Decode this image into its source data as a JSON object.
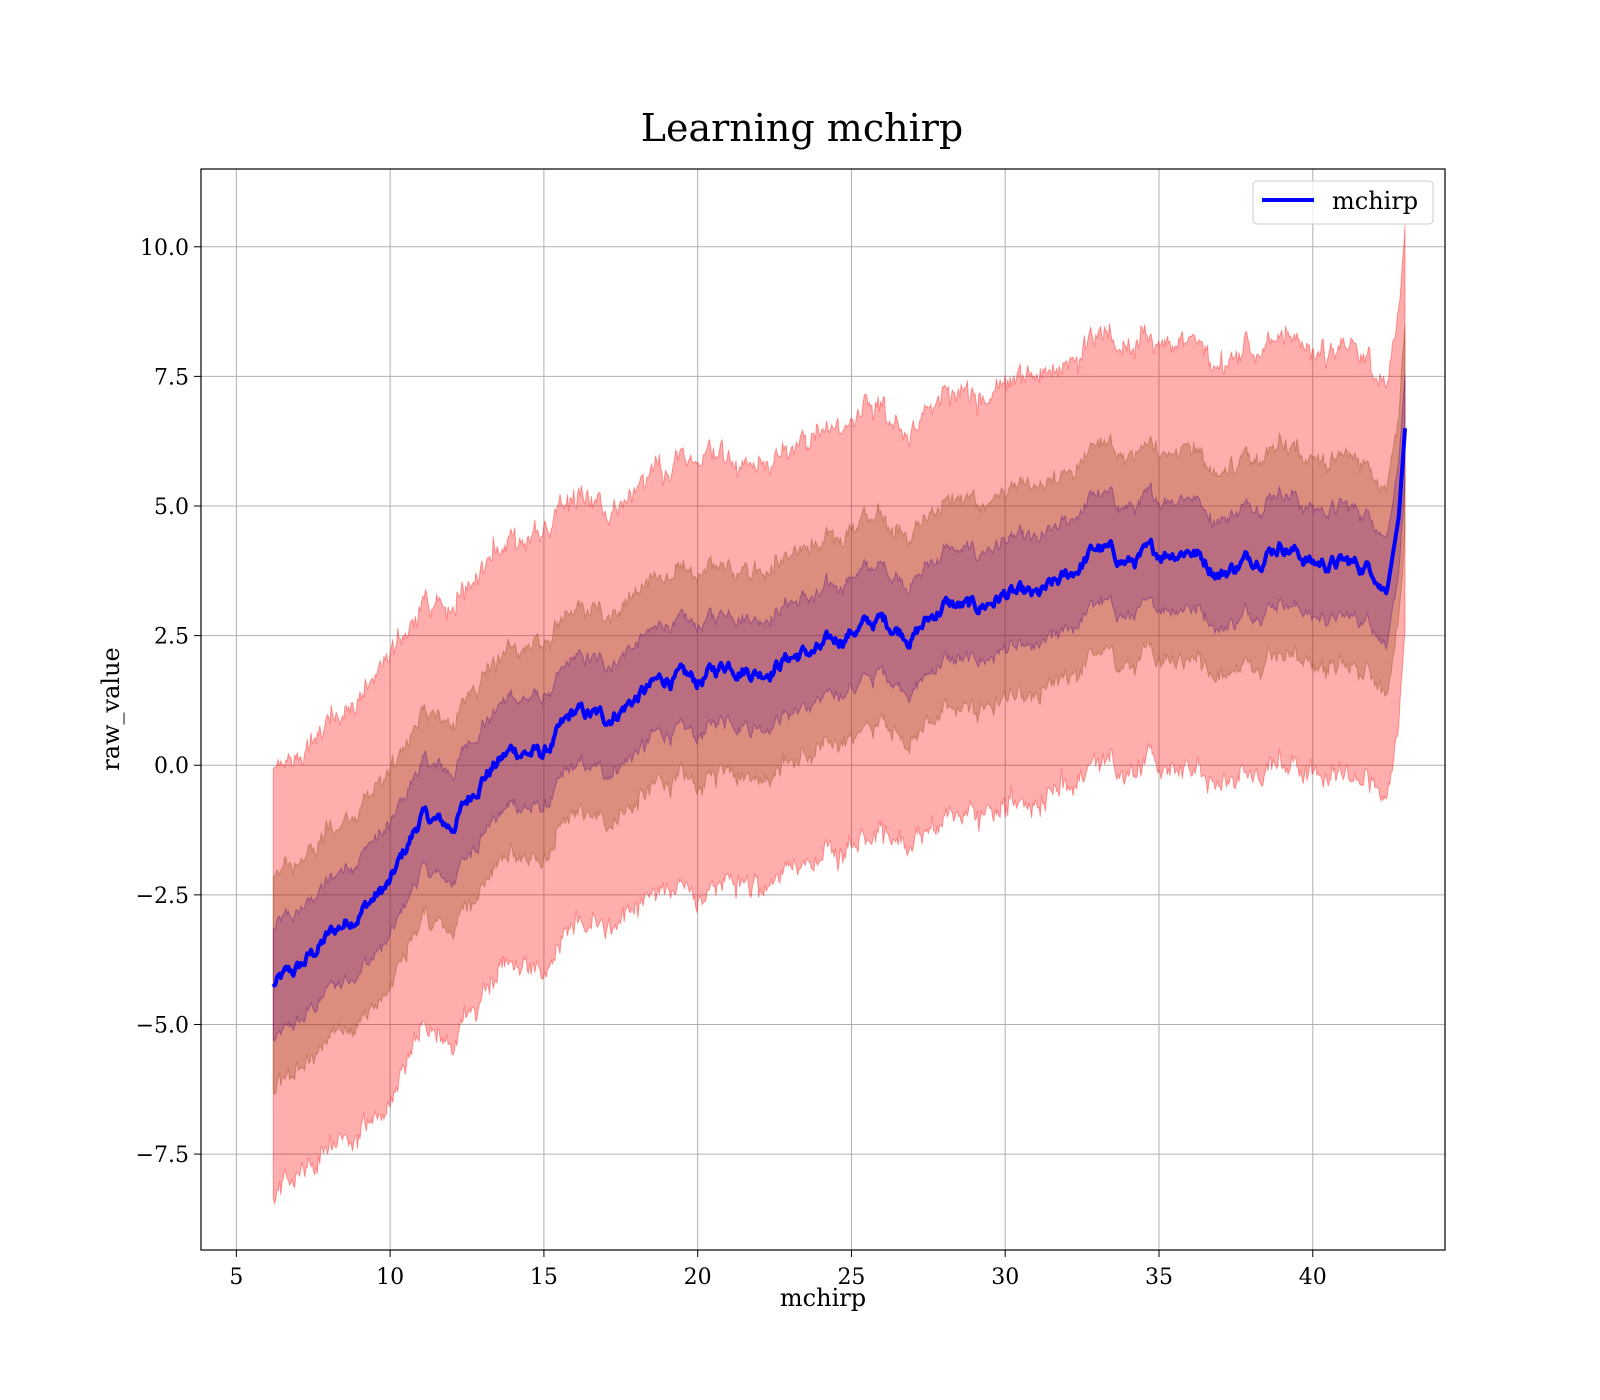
{
  "chart_data": {
    "type": "line",
    "title": "Learning mchirp",
    "xlabel": "mchirp",
    "ylabel": "raw_value",
    "xlim": [
      3.85,
      44.3
    ],
    "ylim": [
      -9.35,
      11.5
    ],
    "xticks": [
      5,
      10,
      15,
      20,
      25,
      30,
      35,
      40
    ],
    "xtick_labels": [
      "5",
      "10",
      "15",
      "20",
      "25",
      "30",
      "35",
      "40"
    ],
    "yticks": [
      -7.5,
      -5.0,
      -2.5,
      0.0,
      2.5,
      5.0,
      7.5,
      10.0
    ],
    "ytick_labels": [
      "−7.5",
      "−5.0",
      "−2.5",
      "0.0",
      "2.5",
      "5.0",
      "7.5",
      "10.0"
    ],
    "grid": true,
    "legend": {
      "position": "top-right",
      "entries": [
        "mchirp"
      ]
    },
    "colors": {
      "line": "#0000ff",
      "band_outer": "#ff0000",
      "band_middle": "#8b4513",
      "band_inner": "#4b0082"
    },
    "x": [
      6.2,
      7,
      8,
      9,
      10,
      11,
      12,
      13,
      14,
      15,
      16,
      17,
      18,
      19,
      20,
      21,
      22,
      23,
      24,
      25,
      26,
      27,
      28,
      29,
      30,
      31,
      32,
      33,
      34,
      35,
      36,
      37,
      38,
      39,
      40,
      41,
      42,
      42.4,
      42.8,
      43.0
    ],
    "series": [
      {
        "name": "mchirp",
        "values": [
          -4.25,
          -3.95,
          -3.3,
          -2.8,
          -2.3,
          -1.0,
          -1.2,
          -0.2,
          0.3,
          0.2,
          1.0,
          0.9,
          1.3,
          1.7,
          1.6,
          2.0,
          1.8,
          2.1,
          2.2,
          2.6,
          2.8,
          2.5,
          3.1,
          3.0,
          3.3,
          3.2,
          3.6,
          4.2,
          3.9,
          4.1,
          4.2,
          3.7,
          4.0,
          4.3,
          3.9,
          3.9,
          3.8,
          3.3,
          4.8,
          6.5
        ]
      }
    ],
    "bands": [
      {
        "sigma": 3,
        "half_width": [
          4.1,
          4.0,
          4.1,
          4.2,
          4.3,
          4.1,
          4.2,
          4.1,
          4.1,
          4.2,
          4.2,
          4.0,
          4.0,
          4.1,
          4.2,
          4.1,
          4.1,
          4.0,
          4.1,
          4.1,
          4.1,
          4.0,
          4.1,
          4.0,
          4.1,
          4.1,
          4.1,
          4.1,
          4.1,
          4.1,
          4.1,
          4.1,
          4.1,
          4.1,
          4.1,
          4.1,
          4.0,
          4.1,
          4.0,
          4.0
        ]
      },
      {
        "sigma": 2,
        "half_width": [
          2.05,
          2.0,
          2.0,
          2.05,
          2.1,
          2.0,
          2.0,
          2.0,
          2.0,
          2.05,
          2.0,
          2.0,
          2.0,
          2.0,
          2.0,
          2.0,
          2.0,
          2.0,
          2.0,
          2.0,
          2.0,
          2.0,
          2.0,
          2.0,
          2.0,
          2.0,
          2.0,
          2.0,
          2.0,
          2.0,
          2.0,
          2.0,
          2.0,
          2.0,
          2.0,
          2.0,
          2.0,
          2.0,
          2.0,
          2.0
        ]
      },
      {
        "sigma": 1,
        "half_width": [
          1.1,
          1.05,
          1.05,
          1.1,
          1.1,
          1.05,
          1.05,
          1.05,
          1.05,
          1.05,
          1.05,
          1.05,
          1.05,
          1.05,
          1.05,
          1.05,
          1.05,
          1.05,
          1.05,
          1.05,
          1.05,
          1.05,
          1.05,
          1.05,
          1.05,
          1.05,
          1.05,
          1.05,
          1.05,
          1.05,
          1.05,
          1.05,
          1.05,
          1.05,
          1.05,
          1.05,
          1.05,
          1.05,
          1.05,
          1.05
        ]
      }
    ]
  }
}
